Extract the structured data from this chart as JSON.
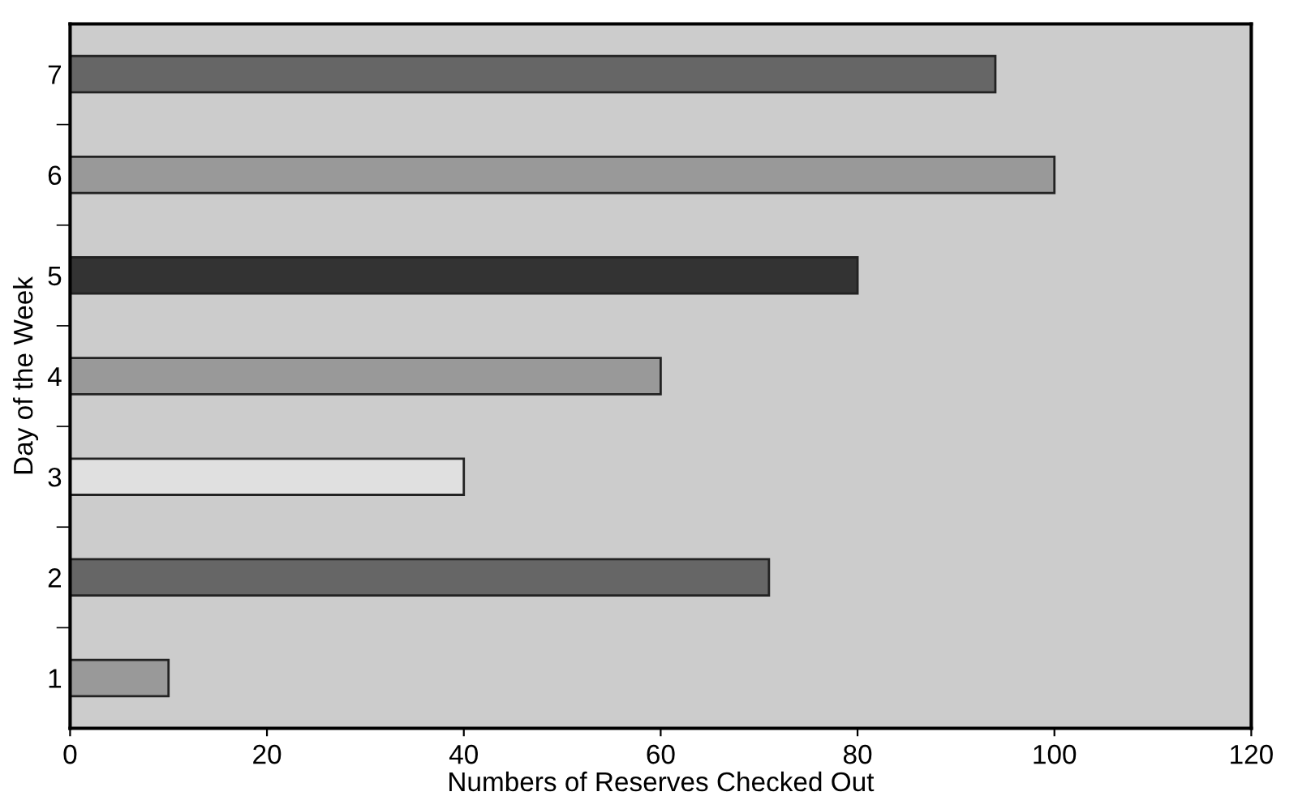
{
  "chart_data": {
    "type": "bar",
    "orientation": "horizontal",
    "xlabel": "Numbers of Reserves Checked Out",
    "ylabel": "Day of the Week",
    "categories": [
      "7",
      "6",
      "5",
      "4",
      "3",
      "2",
      "1"
    ],
    "values": [
      94,
      100,
      80,
      60,
      40,
      71,
      10
    ],
    "colors": [
      "#666666",
      "#999999",
      "#333333",
      "#999999",
      "#e0e0e0",
      "#666666",
      "#999999"
    ],
    "xlim": [
      0,
      120
    ],
    "xticks": [
      0,
      20,
      40,
      60,
      80,
      100,
      120
    ],
    "grid": false,
    "legend": false
  }
}
